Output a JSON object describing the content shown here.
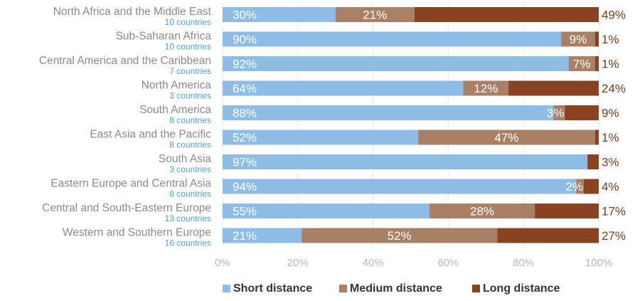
{
  "chart_data": {
    "type": "bar",
    "orientation": "horizontal",
    "stacked": true,
    "title": "",
    "xlabel": "",
    "ylabel": "",
    "xlim": [
      0,
      100
    ],
    "x_ticks": [
      "0%",
      "20%",
      "40%",
      "60%",
      "80%",
      "100%"
    ],
    "categories": [
      "North Africa and the Middle East",
      "Sub-Saharan Africa",
      "Central America and the Caribbean",
      "North America",
      "South America",
      "East Asia and the Pacific",
      "South Asia",
      "Eastern Europe and Central Asia",
      "Central and South-Eastern Europe",
      "Western and Southern Europe"
    ],
    "category_counts": [
      "10 countries",
      "10 countries",
      "7 countries",
      "3 countries",
      "8 countries",
      "8 countries",
      "3 countries",
      "8 countries",
      "13 countries",
      "16 countries"
    ],
    "series": [
      {
        "name": "Short distance",
        "color": "#8dbde6",
        "values": [
          30,
          90,
          92,
          64,
          88,
          52,
          97,
          94,
          55,
          21
        ],
        "labels": [
          "30%",
          "90%",
          "92%",
          "64%",
          "88%",
          "52%",
          "97%",
          "94%",
          "55%",
          "21%"
        ]
      },
      {
        "name": "Medium distance",
        "color": "#a98065",
        "values": [
          21,
          9,
          7,
          12,
          3,
          47,
          0,
          2,
          28,
          52
        ],
        "labels": [
          "21%",
          "9%",
          "7%",
          "12%",
          "3%",
          "47%",
          "",
          "2%",
          "28%",
          "52%"
        ]
      },
      {
        "name": "Long distance",
        "color": "#8a4320",
        "values": [
          49,
          1,
          1,
          24,
          9,
          1,
          3,
          4,
          17,
          27
        ],
        "labels": [
          "49%",
          "1%",
          "1%",
          "24%",
          "9%",
          "1%",
          "3%",
          "4%",
          "17%",
          "27%"
        ]
      }
    ],
    "legend": "bottom",
    "grid": true
  }
}
